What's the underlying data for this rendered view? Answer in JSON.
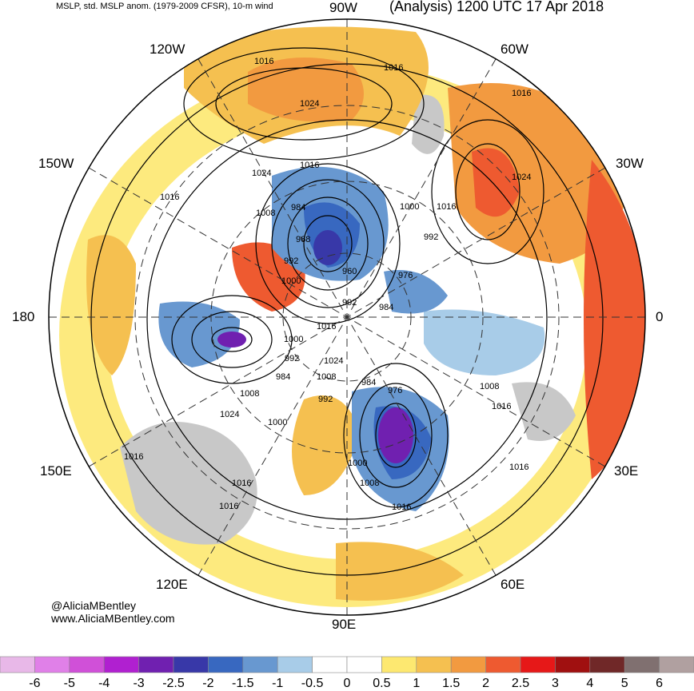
{
  "header": {
    "left_title": "MSLP, std. MSLP anom. (1979-2009 CFSR), 10-m wind",
    "right_title": "(Analysis) 1200 UTC 17 Apr 2018"
  },
  "longitude_labels": [
    "90W",
    "60W",
    "30W",
    "0",
    "30E",
    "60E",
    "90E",
    "120E",
    "150E",
    "180",
    "150W",
    "120W"
  ],
  "isobar_labels": [
    "1016",
    "1016",
    "1016",
    "1024",
    "1016",
    "1016",
    "1024",
    "1016",
    "1008",
    "984",
    "1000",
    "992",
    "1024",
    "968",
    "992",
    "1000",
    "960",
    "976",
    "992",
    "984",
    "1016",
    "1000",
    "992",
    "984",
    "1024",
    "1008",
    "984",
    "976",
    "992",
    "1008",
    "1016",
    "1008",
    "1024",
    "1000",
    "1016",
    "1000",
    "1008",
    "1016",
    "1016",
    "1016",
    "1016"
  ],
  "credits": [
    "@AliciaMBentley",
    "www.AliciaMBentley.com"
  ],
  "colorbar": {
    "colors": [
      "#e8b8e8",
      "#e080e8",
      "#d050d8",
      "#b020d0",
      "#7020b0",
      "#3838a8",
      "#3868c0",
      "#6898d0",
      "#a8cce8",
      "#ffffff",
      "#ffffff",
      "#fde870",
      "#f5c050",
      "#f29a40",
      "#ee5a30",
      "#e61818",
      "#a01010",
      "#702828",
      "#807070",
      "#b0a0a0"
    ],
    "tick_labels": [
      "-6",
      "-5",
      "-4",
      "-3",
      "-2.5",
      "-2",
      "-1.5",
      "-1",
      "-0.5",
      "0",
      "0.5",
      "1",
      "1.5",
      "2",
      "2.5",
      "3",
      "4",
      "5",
      "6"
    ]
  }
}
